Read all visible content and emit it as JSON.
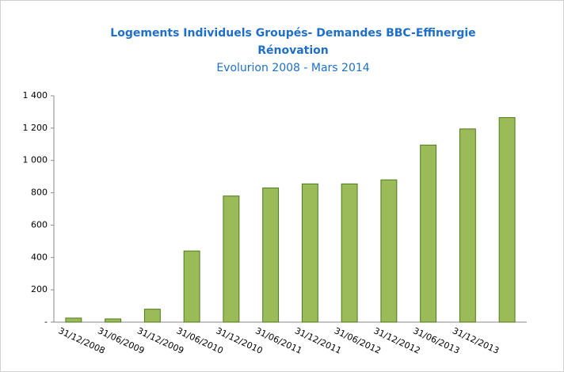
{
  "chart_data": {
    "type": "bar",
    "title": "Logements  Individuels Groupés- Demandes BBC-Effinergie",
    "title_line2": "Rénovation",
    "subtitle": "Evolurion 2008 - Mars 2014",
    "categories": [
      "31/12/2008",
      "31/06/2009",
      "31/12/2009",
      "31/06/2010",
      "31/12/2010",
      "31/06/2011",
      "31/12/2011",
      "31/06/2012",
      "31/12/2012",
      "31/06/2013",
      "31/12/2013",
      null
    ],
    "values": [
      25,
      20,
      80,
      440,
      780,
      830,
      855,
      855,
      880,
      1095,
      1195,
      1265
    ],
    "color": "#9bbb59",
    "edge_color": "#4e7a1e",
    "ylim": [
      0,
      1400
    ],
    "yticks": [
      {
        "value": 0,
        "label": "-"
      },
      200,
      400,
      600,
      800,
      {
        "value": 1000,
        "label": "1 000"
      },
      {
        "value": 1200,
        "label": "1 200"
      },
      {
        "value": 1400,
        "label": "1 400"
      }
    ],
    "grid": false
  }
}
